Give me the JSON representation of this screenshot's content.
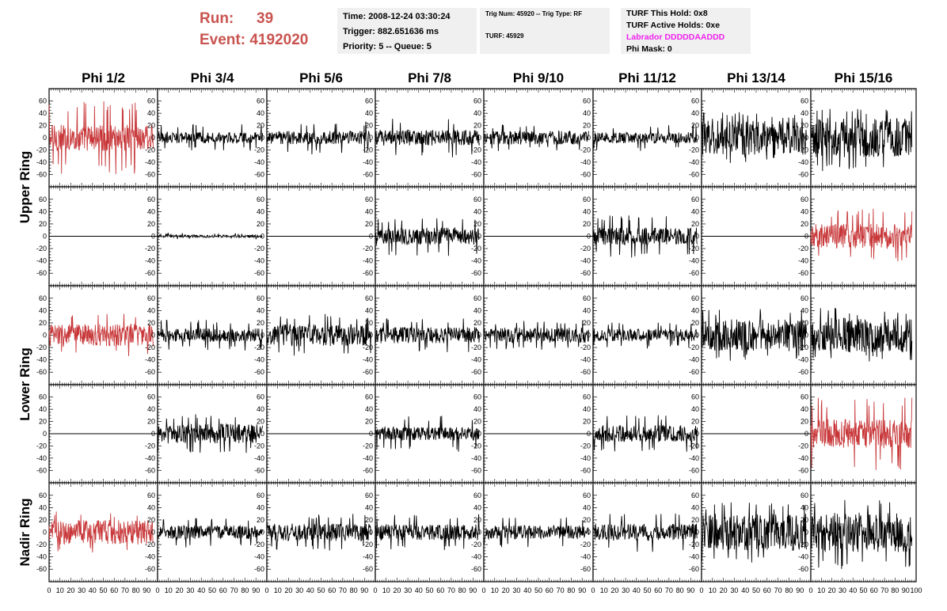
{
  "header": {
    "run_label": "Run:",
    "run_value": "39",
    "event_label": "Event:",
    "event_value": "4192020"
  },
  "info1": {
    "time": "Time: 2008-12-24 03:30:24",
    "trigger": "Trigger: 882.651636 ms",
    "priority": "Priority: 5 -- Queue: 5"
  },
  "info2": {
    "trig": "Trig Num: 45920 -- Trig Type: RF",
    "turf": "TURF: 45929"
  },
  "info3": {
    "this_hold": "TURF This Hold: 0x8",
    "active_holds": "TURF Active Holds: 0xe",
    "labrador": "Labrador DDDDDAADDD",
    "phi_mask": "Phi Mask: 0"
  },
  "colors": {
    "trace_normal": "#000000",
    "trace_triggered": "#c8383a",
    "frame": "#000000"
  },
  "chart_data": {
    "type": "line",
    "columns": [
      "Phi 1/2",
      "Phi 3/4",
      "Phi 5/6",
      "Phi 7/8",
      "Phi 9/10",
      "Phi 11/12",
      "Phi 13/14",
      "Phi 15/16"
    ],
    "rows": [
      "Upper Ring",
      "Upper Ring",
      "Lower Ring",
      "Lower Ring",
      "Nadir Ring"
    ],
    "row_labels": [
      {
        "text": "Upper Ring",
        "rows": [
          0,
          1
        ]
      },
      {
        "text": "Lower Ring",
        "rows": [
          2,
          3
        ]
      },
      {
        "text": "Nadir Ring",
        "rows": [
          4
        ]
      }
    ],
    "xlim": [
      0,
      100
    ],
    "ylim": [
      -70,
      70
    ],
    "x_ticks": [
      0,
      10,
      20,
      30,
      40,
      50,
      60,
      70,
      80,
      90,
      100
    ],
    "y_ticks": [
      60,
      40,
      20,
      0,
      -20,
      -40,
      -60
    ],
    "x_tick_labels": [
      "0",
      "10",
      "20",
      "30",
      "40",
      "50",
      "60",
      "70",
      "80",
      "90",
      "100"
    ],
    "y_tick_labels": [
      "60",
      "40",
      "20",
      "0",
      "-20",
      "-40",
      "-60"
    ],
    "samples_per_trace": 260,
    "x_max_data": 96,
    "panels": [
      [
        {
          "amp": 22,
          "peak": 60,
          "red": true
        },
        {
          "amp": 9,
          "peak": 22,
          "red": false
        },
        {
          "amp": 11,
          "peak": 28,
          "red": false
        },
        {
          "amp": 13,
          "peak": 32,
          "red": false
        },
        {
          "amp": 11,
          "peak": 22,
          "red": false
        },
        {
          "amp": 9,
          "peak": 22,
          "red": false
        },
        {
          "amp": 28,
          "peak": 42,
          "red": false
        },
        {
          "amp": 32,
          "peak": 55,
          "red": false
        }
      ],
      [
        {
          "amp": 0,
          "peak": 0,
          "red": false
        },
        {
          "amp": 2,
          "peak": 5,
          "red": false
        },
        {
          "amp": 0,
          "peak": 0,
          "red": false
        },
        {
          "amp": 14,
          "peak": 32,
          "red": false
        },
        {
          "amp": 0,
          "peak": 0,
          "red": false
        },
        {
          "amp": 14,
          "peak": 35,
          "red": false
        },
        {
          "amp": 0,
          "peak": 0,
          "red": false
        },
        {
          "amp": 20,
          "peak": 45,
          "red": true
        }
      ],
      [
        {
          "amp": 18,
          "peak": 35,
          "red": true
        },
        {
          "amp": 11,
          "peak": 25,
          "red": false
        },
        {
          "amp": 18,
          "peak": 35,
          "red": false
        },
        {
          "amp": 13,
          "peak": 28,
          "red": false
        },
        {
          "amp": 12,
          "peak": 25,
          "red": false
        },
        {
          "amp": 10,
          "peak": 22,
          "red": false
        },
        {
          "amp": 26,
          "peak": 45,
          "red": false
        },
        {
          "amp": 28,
          "peak": 45,
          "red": false
        }
      ],
      [
        {
          "amp": 0,
          "peak": 0,
          "red": false
        },
        {
          "amp": 16,
          "peak": 32,
          "red": false
        },
        {
          "amp": 0,
          "peak": 0,
          "red": false
        },
        {
          "amp": 11,
          "peak": 30,
          "red": false
        },
        {
          "amp": 0,
          "peak": 0,
          "red": false
        },
        {
          "amp": 14,
          "peak": 32,
          "red": false
        },
        {
          "amp": 0,
          "peak": 0,
          "red": false
        },
        {
          "amp": 24,
          "peak": 60,
          "red": true
        }
      ],
      [
        {
          "amp": 20,
          "peak": 35,
          "red": true
        },
        {
          "amp": 11,
          "peak": 25,
          "red": false
        },
        {
          "amp": 14,
          "peak": 30,
          "red": false
        },
        {
          "amp": 13,
          "peak": 30,
          "red": false
        },
        {
          "amp": 11,
          "peak": 25,
          "red": false
        },
        {
          "amp": 14,
          "peak": 32,
          "red": false
        },
        {
          "amp": 30,
          "peak": 50,
          "red": false
        },
        {
          "amp": 32,
          "peak": 60,
          "red": false
        }
      ]
    ]
  }
}
